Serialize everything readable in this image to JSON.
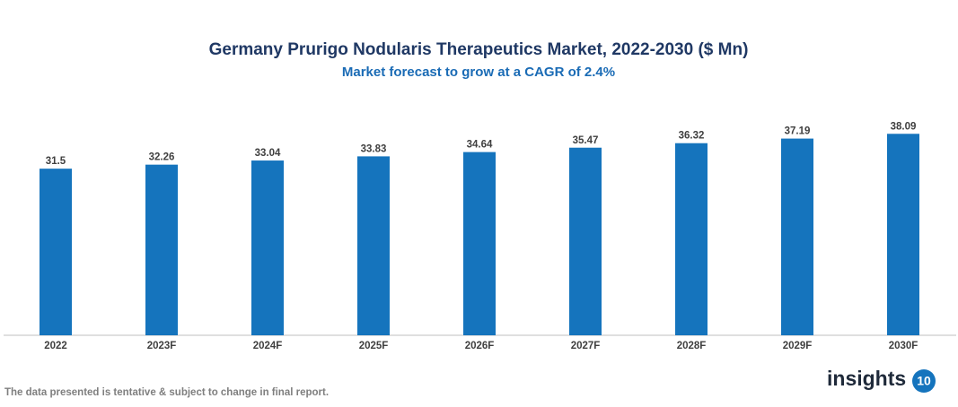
{
  "chart_data": {
    "type": "bar",
    "title": "Germany Prurigo Nodularis Therapeutics Market, 2022-2030 ($ Mn)",
    "subtitle": "Market forecast to grow at a CAGR of 2.4%",
    "categories": [
      "2022",
      "2023F",
      "2024F",
      "2025F",
      "2026F",
      "2027F",
      "2028F",
      "2029F",
      "2030F"
    ],
    "values": [
      31.5,
      32.26,
      33.04,
      33.83,
      34.64,
      35.47,
      36.32,
      37.19,
      38.09
    ],
    "color": "#1574bd",
    "ylim": [
      0,
      40
    ],
    "footnote": "The data presented is tentative & subject to change in final report."
  },
  "logo": {
    "text": "insights",
    "badge": "10"
  }
}
